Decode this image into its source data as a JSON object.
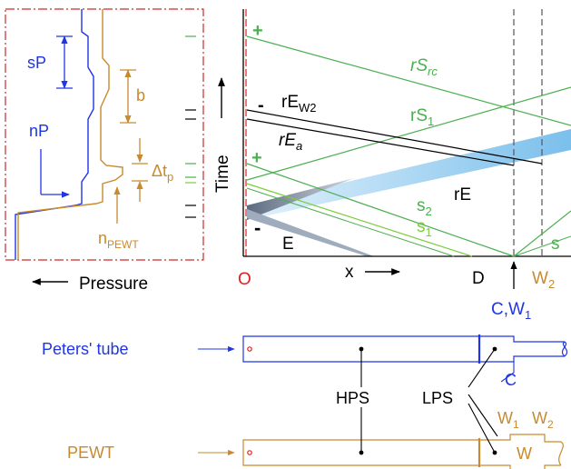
{
  "colors": {
    "blue": "#1f35e6",
    "orange": "#c88a2e",
    "green": "#4caf50",
    "lightgreen": "#7ccd3a",
    "black": "#000000",
    "red": "#e02020",
    "frame": "#cc2a2a",
    "expansion_blue": "#8fc8ee",
    "expansion_gray": "#6f7f95",
    "dash": "#555555"
  },
  "left_panel": {
    "labels": {
      "sP": "sP",
      "b": "b",
      "nP": "nP",
      "delta": "Δt",
      "delta_sub": "p",
      "n": "n",
      "n_sub": "PEWT"
    },
    "xlabel": "Pressure"
  },
  "xt_panel": {
    "ylabel": "Time",
    "xlabel": "x",
    "origin": "O",
    "point_D": "D",
    "point_C": "C,W",
    "point_C_sub": "1",
    "point_W2": "W",
    "point_W2_sub": "2",
    "wave_labels": {
      "rSrc_main": "rS",
      "rSrc_sub": "rc",
      "rS1_main": "rS",
      "rS1_sub": "1",
      "rEW2_main": "rE",
      "rEW2_sub": "W2",
      "rEa_main": "rE",
      "rEa_sub": "a",
      "rE": "rE",
      "s2_main": "s",
      "s2_sub": "2",
      "s1_main": "s",
      "s1_sub": "1",
      "s": "s",
      "E": "E",
      "plus1": "+",
      "plus2": "+",
      "minus1": "-",
      "minus2": "-"
    }
  },
  "bottom_panel": {
    "peters_label": "Peters' tube",
    "pewt_label": "PEWT",
    "hps": "HPS",
    "lps": "LPS",
    "C": "C",
    "W1_main": "W",
    "W1_sub": "1",
    "W2_main": "W",
    "W2_sub": "2",
    "W": "W"
  }
}
